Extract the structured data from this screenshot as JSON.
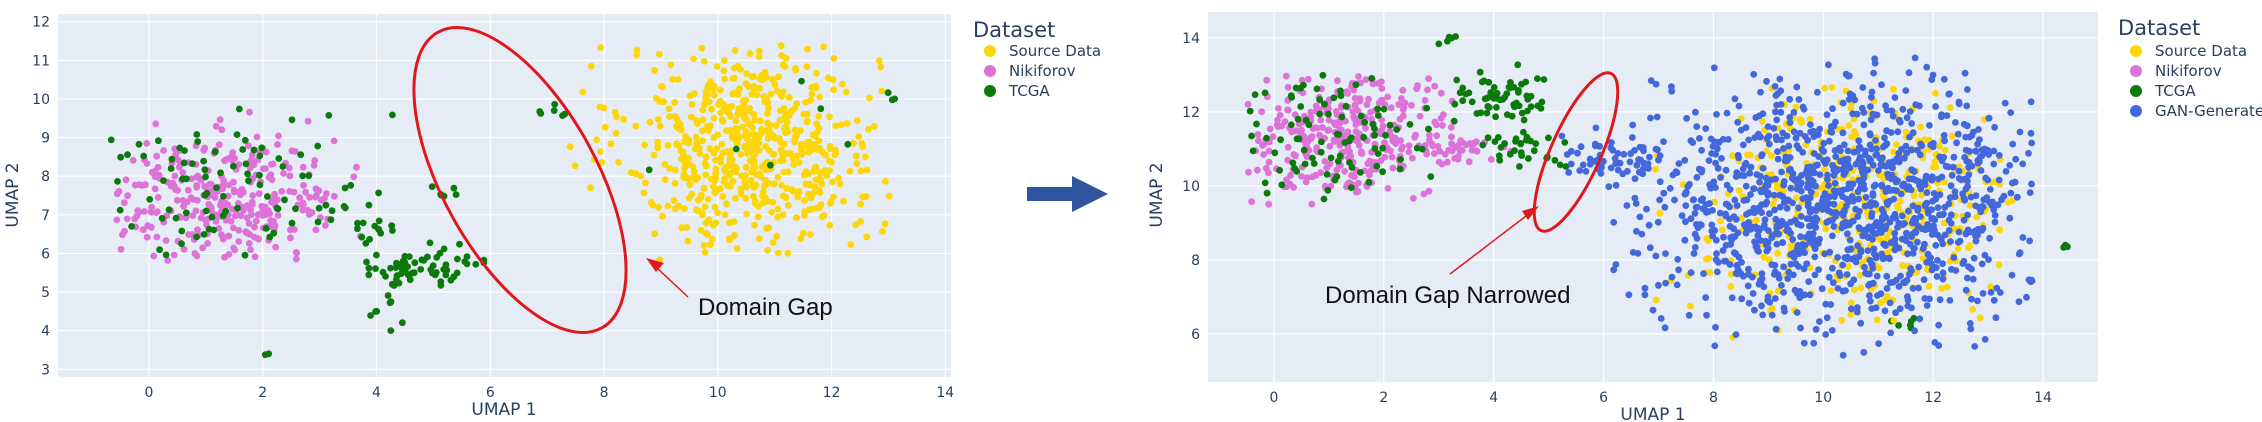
{
  "colors": {
    "Source Data": "#fcd606",
    "Nikiforov": "#dd73d8",
    "TCGA": "#0b7a0b",
    "GAN-Generated": "#4268dc",
    "annotation": "#e0181b",
    "arrow": "#2f55a0",
    "plot_bg": "#e5ecf6"
  },
  "chart_data": [
    {
      "type": "scatter",
      "xlabel": "UMAP 1",
      "ylabel": "UMAP 2",
      "xlim": [
        -1.6,
        14.1
      ],
      "ylim": [
        2.8,
        12.2
      ],
      "xticks": [
        0,
        2,
        4,
        6,
        8,
        10,
        12,
        14
      ],
      "yticks": [
        3,
        4,
        5,
        6,
        7,
        8,
        9,
        10,
        11,
        12
      ],
      "grid": true,
      "legend": {
        "title": "Dataset",
        "placement": "top-right",
        "entries": [
          "Source Data",
          "Nikiforov",
          "TCGA"
        ]
      },
      "annotation": {
        "text": "Domain Gap",
        "ellipse_center": [
          6.8,
          8.2
        ],
        "arrow_to": [
          8.7,
          5.6
        ]
      },
      "clusters": [
        {
          "series": "Source Data",
          "count": 620,
          "cx": 10.6,
          "cy": 8.8,
          "sx": 1.1,
          "sy": 1.3,
          "xr": [
            7.3,
            13.2
          ],
          "yr": [
            5.6,
            11.6
          ]
        },
        {
          "series": "Nikiforov",
          "count": 320,
          "cx": 1.4,
          "cy": 7.4,
          "sx": 1.0,
          "sy": 0.8,
          "xr": [
            -0.6,
            4.0
          ],
          "yr": [
            5.6,
            9.7
          ]
        },
        {
          "series": "TCGA",
          "count": 90,
          "cx": 1.5,
          "cy": 7.6,
          "sx": 1.4,
          "sy": 1.1,
          "xr": [
            -0.8,
            4.3
          ],
          "yr": [
            5.8,
            9.8
          ]
        },
        {
          "series": "TCGA",
          "count": 60,
          "cx": 4.8,
          "cy": 5.6,
          "sx": 0.6,
          "sy": 0.3,
          "xr": [
            3.8,
            5.9
          ],
          "yr": [
            5.1,
            6.4
          ]
        },
        {
          "series": "TCGA",
          "count": 14,
          "cx": 3.8,
          "cy": 6.8,
          "sx": 0.3,
          "sy": 0.4,
          "xr": [
            3.2,
            4.3
          ],
          "yr": [
            6.0,
            7.6
          ]
        },
        {
          "series": "TCGA",
          "count": 8,
          "cx": 4.2,
          "cy": 4.5,
          "sx": 0.25,
          "sy": 0.4,
          "xr": [
            3.6,
            4.6
          ],
          "yr": [
            3.6,
            5.0
          ]
        },
        {
          "series": "TCGA",
          "count": 6,
          "cx": 5.2,
          "cy": 7.6,
          "sx": 0.2,
          "sy": 0.2,
          "xr": [
            4.8,
            5.6
          ],
          "yr": [
            7.3,
            8.0
          ]
        },
        {
          "series": "TCGA",
          "count": 6,
          "cx": 7.1,
          "cy": 9.7,
          "sx": 0.15,
          "sy": 0.1,
          "xr": [
            6.8,
            7.5
          ],
          "yr": [
            9.5,
            9.9
          ]
        },
        {
          "series": "TCGA",
          "count": 6,
          "cx": 10.8,
          "cy": 9.2,
          "sx": 1.0,
          "sy": 0.8,
          "xr": [
            8.5,
            12.5
          ],
          "yr": [
            8.0,
            10.5
          ]
        },
        {
          "series": "TCGA",
          "count": 3,
          "cx": 13.05,
          "cy": 10.05,
          "sx": 0.05,
          "sy": 0.05,
          "xr": [
            12.9,
            13.2
          ],
          "yr": [
            9.9,
            10.2
          ]
        },
        {
          "series": "TCGA",
          "count": 2,
          "cx": 2.1,
          "cy": 3.4,
          "sx": 0.05,
          "sy": 0.05,
          "xr": [
            2.0,
            2.2
          ],
          "yr": [
            3.3,
            3.5
          ]
        }
      ]
    },
    {
      "type": "scatter",
      "xlabel": "UMAP 1",
      "ylabel": "UMAP 2",
      "xlim": [
        -1.2,
        15.0
      ],
      "ylim": [
        4.7,
        14.7
      ],
      "xticks": [
        0,
        2,
        4,
        6,
        8,
        10,
        12,
        14
      ],
      "yticks": [
        6,
        8,
        10,
        12,
        14
      ],
      "grid": true,
      "legend": {
        "title": "Dataset",
        "placement": "top-right",
        "entries": [
          "Source Data",
          "Nikiforov",
          "TCGA",
          "GAN-Generated"
        ]
      },
      "annotation": {
        "text": "Domain Gap Narrowed",
        "ellipse_center": [
          5.6,
          10.9
        ],
        "arrow_to": [
          4.8,
          9.4
        ]
      },
      "clusters": [
        {
          "series": "Nikiforov",
          "count": 320,
          "cx": 1.3,
          "cy": 11.4,
          "sx": 1.0,
          "sy": 0.9,
          "xr": [
            -0.5,
            3.5
          ],
          "yr": [
            9.5,
            13.0
          ]
        },
        {
          "series": "Nikiforov",
          "count": 40,
          "cx": 3.2,
          "cy": 11.0,
          "sx": 0.7,
          "sy": 0.2,
          "xr": [
            2.2,
            4.5
          ],
          "yr": [
            10.5,
            11.4
          ]
        },
        {
          "series": "TCGA",
          "count": 90,
          "cx": 1.0,
          "cy": 11.4,
          "sx": 1.1,
          "sy": 1.0,
          "xr": [
            -0.5,
            3.3
          ],
          "yr": [
            9.6,
            13.0
          ]
        },
        {
          "series": "TCGA",
          "count": 60,
          "cx": 4.1,
          "cy": 12.4,
          "sx": 0.6,
          "sy": 0.5,
          "xr": [
            3.2,
            5.0
          ],
          "yr": [
            11.2,
            13.3
          ]
        },
        {
          "series": "TCGA",
          "count": 30,
          "cx": 4.5,
          "cy": 11.0,
          "sx": 0.5,
          "sy": 0.3,
          "xr": [
            3.5,
            5.6
          ],
          "yr": [
            10.2,
            11.6
          ]
        },
        {
          "series": "TCGA",
          "count": 5,
          "cx": 3.2,
          "cy": 14.0,
          "sx": 0.1,
          "sy": 0.1,
          "xr": [
            3.0,
            3.5
          ],
          "yr": [
            13.7,
            14.2
          ]
        },
        {
          "series": "TCGA",
          "count": 6,
          "cx": 11.5,
          "cy": 6.3,
          "sx": 0.2,
          "sy": 0.2,
          "xr": [
            11.1,
            11.9
          ],
          "yr": [
            6.0,
            6.6
          ]
        },
        {
          "series": "TCGA",
          "count": 3,
          "cx": 14.4,
          "cy": 8.4,
          "sx": 0.05,
          "sy": 0.05,
          "xr": [
            14.3,
            14.5
          ],
          "yr": [
            8.3,
            8.5
          ]
        },
        {
          "series": "Source Data",
          "count": 420,
          "cx": 10.6,
          "cy": 9.4,
          "sx": 1.6,
          "sy": 1.5,
          "xr": [
            6.8,
            13.6
          ],
          "yr": [
            5.5,
            13.0
          ]
        },
        {
          "series": "GAN-Generated",
          "count": 1200,
          "cx": 10.4,
          "cy": 9.6,
          "sx": 1.8,
          "sy": 1.6,
          "xr": [
            6.0,
            13.8
          ],
          "yr": [
            5.4,
            13.5
          ]
        },
        {
          "series": "GAN-Generated",
          "count": 50,
          "cx": 6.0,
          "cy": 10.8,
          "sx": 0.5,
          "sy": 0.3,
          "xr": [
            5.1,
            7.0
          ],
          "yr": [
            10.3,
            11.6
          ]
        },
        {
          "series": "GAN-Generated",
          "count": 4,
          "cx": 13.8,
          "cy": 7.4,
          "sx": 0.05,
          "sy": 0.05,
          "xr": [
            13.7,
            13.9
          ],
          "yr": [
            7.3,
            7.5
          ]
        }
      ]
    }
  ]
}
